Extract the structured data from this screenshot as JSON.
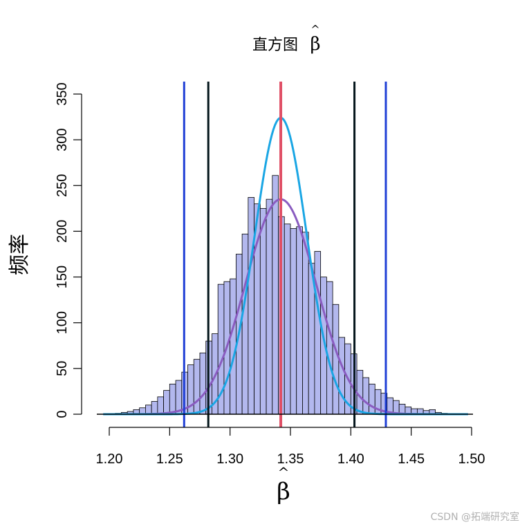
{
  "chart_data": {
    "type": "bar",
    "title": "直方图",
    "title_symbol": "β",
    "xlabel": "β",
    "ylabel": "频率",
    "xlim": [
      1.2,
      1.5
    ],
    "ylim": [
      0,
      350
    ],
    "xticks": [
      "1.20",
      "1.25",
      "1.30",
      "1.35",
      "1.40",
      "1.45",
      "1.50"
    ],
    "yticks": [
      "0",
      "50",
      "100",
      "150",
      "200",
      "250",
      "300",
      "350"
    ],
    "grid": false,
    "legend": "none",
    "histogram": {
      "bin_width": 0.005,
      "bin_start": 1.195,
      "values": [
        0,
        0,
        1,
        2,
        3,
        5,
        7,
        10,
        14,
        19,
        26,
        33,
        37,
        46,
        54,
        60,
        67,
        80,
        88,
        142,
        145,
        148,
        175,
        197,
        237,
        230,
        225,
        235,
        261,
        216,
        208,
        203,
        205,
        199,
        165,
        178,
        150,
        145,
        120,
        84,
        77,
        66,
        48,
        40,
        33,
        27,
        23,
        18,
        15,
        11,
        8,
        6,
        6,
        4,
        5,
        2,
        1,
        0,
        0
      ],
      "color": "#b3b8ee",
      "edge_color": "#000000"
    },
    "curves": [
      {
        "kind": "normal",
        "mean": 1.342,
        "sd": 0.0293,
        "peak": 235,
        "color": "#8a5cc0"
      },
      {
        "kind": "normal",
        "mean": 1.342,
        "sd": 0.0215,
        "peak": 324,
        "color": "#1aa6e4"
      }
    ],
    "vlines": [
      {
        "x": 1.262,
        "color": "#1f3fd6"
      },
      {
        "x": 1.282,
        "color": "#05161c"
      },
      {
        "x": 1.342,
        "color": "#e04f66"
      },
      {
        "x": 1.403,
        "color": "#05161c"
      },
      {
        "x": 1.429,
        "color": "#1f3fd6"
      }
    ]
  },
  "watermark": "CSDN @拓端研究室"
}
